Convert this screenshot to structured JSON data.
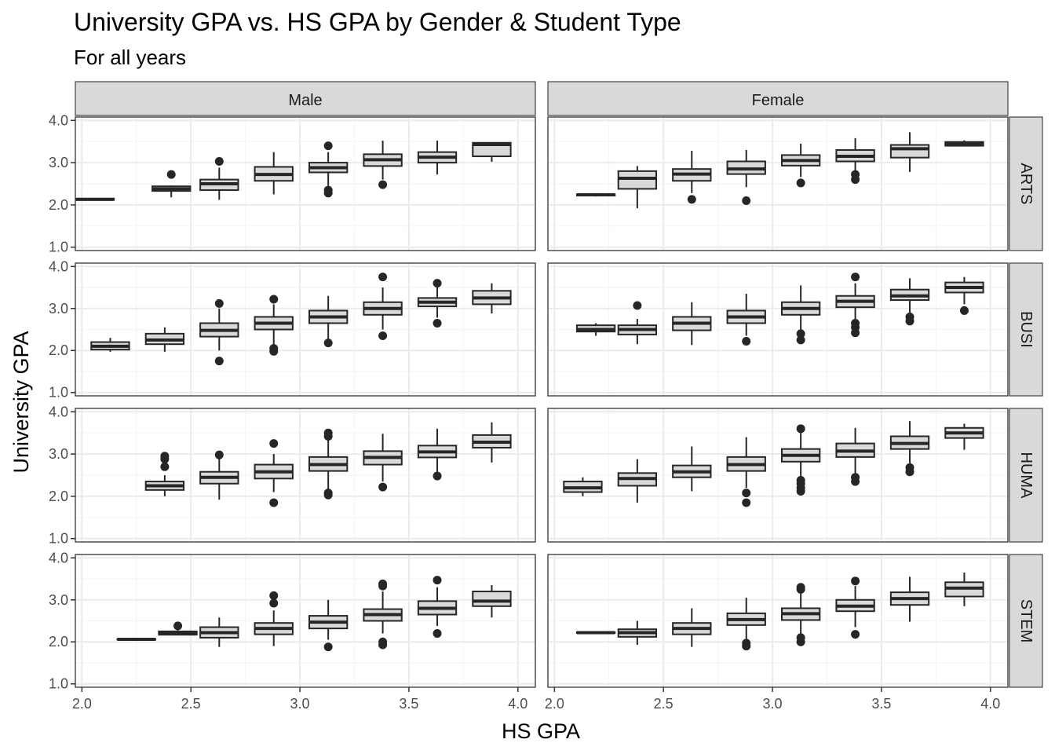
{
  "chart_data": {
    "type": "boxplot",
    "title": "University GPA vs. HS GPA by Gender & Student Type",
    "subtitle": "For all years",
    "xlabel": "HS GPA",
    "ylabel": "University GPA",
    "xlim": [
      1.97,
      4.08
    ],
    "ylim": [
      0.92,
      4.08
    ],
    "x_ticks": [
      "2.0",
      "2.5",
      "3.0",
      "3.5",
      "4.0"
    ],
    "y_ticks": [
      "1.0",
      "2.0",
      "3.0",
      "4.0"
    ],
    "facet_cols": [
      "Male",
      "Female"
    ],
    "facet_rows": [
      "ARTS",
      "BUSI",
      "HUMA",
      "STEM"
    ],
    "grid": true,
    "colors": {
      "box_fill": "#d9d9d9",
      "box_line": "#262626",
      "strip_fill": "#d9d9d9",
      "grid_major": "#ebebeb",
      "grid_minor": "#f5f5f5",
      "panel_border": "#333333"
    },
    "box_fields": [
      "hs_gpa",
      "whisker_low",
      "q1",
      "median",
      "q3",
      "whisker_high"
    ],
    "panels": [
      {
        "row": "ARTS",
        "col": "Male",
        "boxes": [
          [
            2.06,
            2.1,
            2.12,
            2.13,
            2.15,
            2.16
          ],
          [
            2.41,
            2.18,
            2.33,
            2.38,
            2.44,
            2.46
          ],
          [
            2.63,
            2.12,
            2.35,
            2.5,
            2.6,
            2.88
          ],
          [
            2.88,
            2.25,
            2.57,
            2.72,
            2.9,
            3.25
          ],
          [
            3.13,
            2.45,
            2.77,
            2.88,
            3.0,
            3.25
          ],
          [
            3.38,
            2.6,
            2.92,
            3.07,
            3.2,
            3.52
          ],
          [
            3.63,
            2.72,
            3.0,
            3.13,
            3.25,
            3.52
          ],
          [
            3.88,
            3.02,
            3.15,
            3.43,
            3.47,
            3.48
          ]
        ],
        "outliers": [
          [
            2.41,
            2.72
          ],
          [
            2.63,
            3.03
          ],
          [
            3.13,
            3.4
          ],
          [
            3.13,
            2.35
          ],
          [
            3.13,
            2.28
          ],
          [
            3.38,
            2.48
          ]
        ]
      },
      {
        "row": "ARTS",
        "col": "Female",
        "boxes": [
          [
            2.19,
            2.2,
            2.22,
            2.24,
            2.25,
            2.26
          ],
          [
            2.38,
            1.92,
            2.38,
            2.63,
            2.8,
            2.92
          ],
          [
            2.63,
            2.28,
            2.57,
            2.73,
            2.85,
            3.28
          ],
          [
            2.88,
            2.42,
            2.73,
            2.85,
            3.03,
            3.3
          ],
          [
            3.13,
            2.66,
            2.93,
            3.05,
            3.18,
            3.45
          ],
          [
            3.38,
            2.8,
            3.03,
            3.15,
            3.3,
            3.58
          ],
          [
            3.63,
            2.78,
            3.12,
            3.33,
            3.42,
            3.72
          ],
          [
            3.88,
            3.42,
            3.4,
            3.45,
            3.49,
            3.53
          ]
        ],
        "outliers": [
          [
            2.63,
            2.13
          ],
          [
            2.88,
            2.1
          ],
          [
            3.13,
            2.52
          ],
          [
            3.38,
            2.72
          ],
          [
            3.38,
            2.6
          ]
        ]
      },
      {
        "row": "BUSI",
        "col": "Male",
        "boxes": [
          [
            2.13,
            1.97,
            2.02,
            2.1,
            2.2,
            2.3
          ],
          [
            2.38,
            1.97,
            2.15,
            2.25,
            2.4,
            2.55
          ],
          [
            2.63,
            2.0,
            2.33,
            2.48,
            2.65,
            3.0
          ],
          [
            2.88,
            2.1,
            2.5,
            2.65,
            2.8,
            3.1
          ],
          [
            3.13,
            2.25,
            2.65,
            2.8,
            2.95,
            3.3
          ],
          [
            3.38,
            2.5,
            2.85,
            3.0,
            3.15,
            3.5
          ],
          [
            3.63,
            2.78,
            3.05,
            3.15,
            3.25,
            3.5
          ],
          [
            3.88,
            2.88,
            3.1,
            3.25,
            3.42,
            3.6
          ]
        ],
        "outliers": [
          [
            2.63,
            3.12
          ],
          [
            2.63,
            1.75
          ],
          [
            2.88,
            3.22
          ],
          [
            2.88,
            2.05
          ],
          [
            2.88,
            1.98
          ],
          [
            3.13,
            2.18
          ],
          [
            3.38,
            3.75
          ],
          [
            3.38,
            2.35
          ],
          [
            3.63,
            3.6
          ],
          [
            3.63,
            2.65
          ]
        ]
      },
      {
        "row": "BUSI",
        "col": "Female",
        "boxes": [
          [
            2.19,
            2.35,
            2.45,
            2.5,
            2.6,
            2.65
          ],
          [
            2.38,
            2.15,
            2.38,
            2.5,
            2.6,
            2.75
          ],
          [
            2.63,
            2.13,
            2.48,
            2.65,
            2.8,
            3.15
          ],
          [
            2.88,
            2.35,
            2.65,
            2.8,
            2.95,
            3.35
          ],
          [
            3.13,
            2.45,
            2.85,
            3.0,
            3.15,
            3.55
          ],
          [
            3.38,
            2.75,
            3.03,
            3.17,
            3.3,
            3.6
          ],
          [
            3.63,
            2.85,
            3.2,
            3.3,
            3.45,
            3.72
          ],
          [
            3.88,
            3.1,
            3.38,
            3.5,
            3.62,
            3.75
          ]
        ],
        "outliers": [
          [
            2.38,
            3.07
          ],
          [
            2.88,
            2.22
          ],
          [
            3.13,
            2.4
          ],
          [
            3.13,
            2.25
          ],
          [
            3.38,
            3.75
          ],
          [
            3.38,
            2.65
          ],
          [
            3.38,
            2.55
          ],
          [
            3.38,
            2.42
          ],
          [
            3.63,
            2.8
          ],
          [
            3.63,
            2.7
          ],
          [
            3.88,
            2.95
          ]
        ]
      },
      {
        "row": "HUMA",
        "col": "Male",
        "boxes": [
          [
            2.38,
            2.0,
            2.15,
            2.25,
            2.35,
            2.5
          ],
          [
            2.63,
            1.92,
            2.3,
            2.45,
            2.58,
            2.95
          ],
          [
            2.88,
            2.1,
            2.42,
            2.58,
            2.75,
            3.0
          ],
          [
            3.13,
            2.15,
            2.6,
            2.75,
            2.93,
            3.35
          ],
          [
            3.38,
            2.35,
            2.75,
            2.92,
            3.07,
            3.48
          ],
          [
            3.63,
            2.55,
            2.92,
            3.05,
            3.2,
            3.6
          ],
          [
            3.88,
            2.8,
            3.15,
            3.28,
            3.45,
            3.75
          ]
        ],
        "outliers": [
          [
            2.38,
            2.95
          ],
          [
            2.38,
            2.88
          ],
          [
            2.38,
            2.7
          ],
          [
            2.63,
            2.98
          ],
          [
            2.88,
            3.25
          ],
          [
            2.88,
            1.85
          ],
          [
            3.13,
            3.5
          ],
          [
            3.13,
            3.42
          ],
          [
            3.13,
            2.08
          ],
          [
            3.13,
            2.03
          ],
          [
            3.38,
            2.22
          ],
          [
            3.63,
            2.48
          ]
        ]
      },
      {
        "row": "HUMA",
        "col": "Female",
        "boxes": [
          [
            2.13,
            2.0,
            2.1,
            2.2,
            2.35,
            2.45
          ],
          [
            2.38,
            1.85,
            2.25,
            2.42,
            2.55,
            2.88
          ],
          [
            2.63,
            2.12,
            2.45,
            2.58,
            2.73,
            3.18
          ],
          [
            2.88,
            2.2,
            2.6,
            2.75,
            2.93,
            3.4
          ],
          [
            3.13,
            2.45,
            2.82,
            2.97,
            3.12,
            3.5
          ],
          [
            3.38,
            2.45,
            2.93,
            3.07,
            3.25,
            3.62
          ],
          [
            3.63,
            2.75,
            3.12,
            3.25,
            3.42,
            3.78
          ],
          [
            3.88,
            3.1,
            3.38,
            3.5,
            3.62,
            3.72
          ]
        ],
        "outliers": [
          [
            2.88,
            2.08
          ],
          [
            2.88,
            1.85
          ],
          [
            3.13,
            3.6
          ],
          [
            3.13,
            2.38
          ],
          [
            3.13,
            2.3
          ],
          [
            3.13,
            2.2
          ],
          [
            3.13,
            2.12
          ],
          [
            3.38,
            2.45
          ],
          [
            3.38,
            2.35
          ],
          [
            3.63,
            2.68
          ],
          [
            3.63,
            2.58
          ]
        ]
      },
      {
        "row": "STEM",
        "col": "Male",
        "boxes": [
          [
            2.25,
            2.03,
            2.05,
            2.06,
            2.07,
            2.09
          ],
          [
            2.44,
            2.17,
            2.17,
            2.22,
            2.25,
            2.28
          ],
          [
            2.63,
            1.88,
            2.1,
            2.22,
            2.35,
            2.58
          ],
          [
            2.88,
            1.9,
            2.18,
            2.32,
            2.45,
            2.75
          ],
          [
            3.13,
            2.05,
            2.32,
            2.47,
            2.62,
            3.0
          ],
          [
            3.38,
            2.2,
            2.5,
            2.65,
            2.78,
            3.2
          ],
          [
            3.63,
            2.38,
            2.65,
            2.8,
            2.97,
            3.3
          ],
          [
            3.88,
            2.58,
            2.85,
            2.97,
            3.2,
            3.35
          ]
        ],
        "outliers": [
          [
            2.44,
            2.38
          ],
          [
            2.88,
            3.1
          ],
          [
            2.88,
            2.92
          ],
          [
            3.13,
            1.88
          ],
          [
            3.38,
            3.38
          ],
          [
            3.38,
            3.33
          ],
          [
            3.38,
            2.0
          ],
          [
            3.38,
            1.93
          ],
          [
            3.63,
            3.47
          ],
          [
            3.63,
            2.2
          ]
        ]
      },
      {
        "row": "STEM",
        "col": "Female",
        "boxes": [
          [
            2.19,
            2.2,
            2.21,
            2.22,
            2.23,
            2.24
          ],
          [
            2.38,
            1.93,
            2.12,
            2.22,
            2.3,
            2.5
          ],
          [
            2.63,
            1.88,
            2.18,
            2.32,
            2.45,
            2.8
          ],
          [
            2.88,
            2.02,
            2.4,
            2.53,
            2.68,
            3.05
          ],
          [
            3.13,
            2.2,
            2.52,
            2.67,
            2.8,
            3.15
          ],
          [
            3.38,
            2.35,
            2.73,
            2.85,
            3.0,
            3.33
          ],
          [
            3.63,
            2.48,
            2.88,
            3.03,
            3.18,
            3.55
          ],
          [
            3.88,
            2.85,
            3.08,
            3.28,
            3.42,
            3.65
          ]
        ],
        "outliers": [
          [
            2.88,
            1.97
          ],
          [
            2.88,
            1.9
          ],
          [
            3.13,
            3.3
          ],
          [
            3.13,
            3.25
          ],
          [
            3.13,
            2.1
          ],
          [
            3.13,
            2.0
          ],
          [
            3.38,
            3.45
          ],
          [
            3.38,
            2.18
          ]
        ]
      }
    ]
  }
}
